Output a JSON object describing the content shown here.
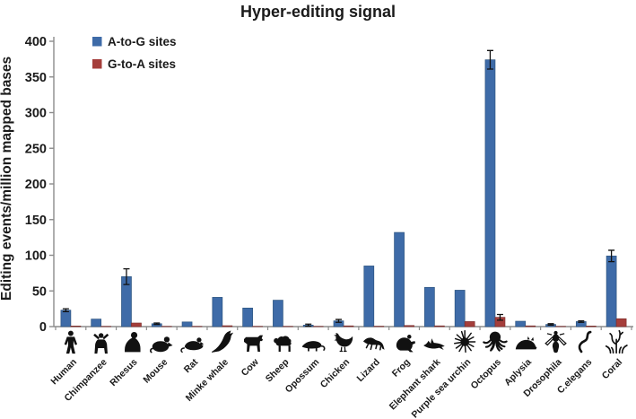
{
  "chart_data": {
    "type": "bar",
    "title": "Hyper-editing signal",
    "ylabel": "Editing events/million mapped bases",
    "xlabel": "",
    "ylim": [
      0,
      400
    ],
    "yticks": [
      0,
      50,
      100,
      150,
      200,
      250,
      300,
      350,
      400
    ],
    "grid": false,
    "legend_position": "top-left",
    "axis_color": "#8c8c8c",
    "text_color": "#1a1a1a",
    "categories": [
      "Human",
      "Chimpanzee",
      "Rhesus",
      "Mouse",
      "Rat",
      "Minke whale",
      "Cow",
      "Sheep",
      "Opossum",
      "Chicken",
      "Lizard",
      "Frog",
      "Elephant shark",
      "Purple sea urchin",
      "Octopus",
      "Aplysia",
      "Drosophila",
      "C.elegans",
      "Coral"
    ],
    "icons": [
      "human-icon",
      "chimpanzee-icon",
      "rhesus-icon",
      "mouse-icon",
      "rat-icon",
      "minke-whale-icon",
      "cow-icon",
      "sheep-icon",
      "opossum-icon",
      "chicken-icon",
      "lizard-icon",
      "frog-icon",
      "elephant-shark-icon",
      "purple-sea-urchin-icon",
      "octopus-icon",
      "aplysia-icon",
      "drosophila-icon",
      "c-elegans-icon",
      "coral-icon"
    ],
    "series": [
      {
        "name": "A-to-G sites",
        "color": "#3e6ba8",
        "border": "#2e5580",
        "values": [
          23,
          10.5,
          70,
          4,
          6.5,
          41,
          26,
          37,
          2,
          8,
          85,
          132,
          55,
          51,
          374,
          7.5,
          3,
          7,
          99
        ],
        "errors": [
          2,
          0,
          11,
          1,
          0,
          0,
          0,
          0,
          1.5,
          2,
          0,
          0,
          0,
          0,
          13,
          0,
          1,
          1,
          8
        ]
      },
      {
        "name": "G-to-A sites",
        "color": "#a53e3b",
        "border": "#7e302e",
        "values": [
          0.8,
          0.3,
          5,
          0.3,
          0.3,
          1.2,
          0.3,
          0.3,
          0.3,
          1,
          0.5,
          1.5,
          1,
          7,
          13,
          1,
          0.3,
          0.8,
          11
        ],
        "errors": [
          0,
          0,
          0,
          0,
          0,
          0,
          0,
          0,
          0,
          0,
          0,
          0,
          0,
          0,
          4,
          0,
          0,
          0,
          0
        ]
      }
    ]
  }
}
